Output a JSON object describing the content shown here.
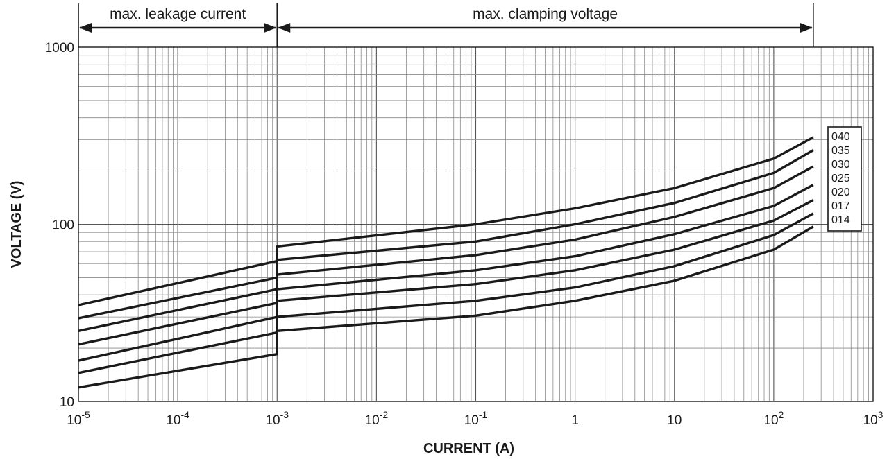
{
  "chart_data": {
    "type": "line",
    "xlabel": "CURRENT (A)",
    "ylabel": "VOLTAGE (V)",
    "x_scale": "log",
    "y_scale": "log",
    "xlim": [
      1e-05,
      1000
    ],
    "ylim": [
      10,
      1000
    ],
    "grid": true,
    "x_ticks": [
      {
        "value": 1e-05,
        "base": "10",
        "exp": "-5"
      },
      {
        "value": 0.0001,
        "base": "10",
        "exp": "-4"
      },
      {
        "value": 0.001,
        "base": "10",
        "exp": "-3"
      },
      {
        "value": 0.01,
        "base": "10",
        "exp": "-2"
      },
      {
        "value": 0.1,
        "base": "10",
        "exp": "-1"
      },
      {
        "value": 1,
        "base": "1",
        "exp": ""
      },
      {
        "value": 10,
        "base": "10",
        "exp": ""
      },
      {
        "value": 100,
        "base": "10",
        "exp": "2"
      },
      {
        "value": 1000,
        "base": "10",
        "exp": "3"
      }
    ],
    "y_ticks": [
      {
        "value": 10,
        "label": "10"
      },
      {
        "value": 100,
        "label": "100"
      },
      {
        "value": 1000,
        "label": "1000"
      }
    ],
    "regions": [
      {
        "label": "max. leakage current",
        "x_from": 1e-05,
        "x_to": 0.001
      },
      {
        "label": "max. clamping voltage",
        "x_from": 0.001,
        "x_to": 250
      }
    ],
    "legend_placement": "right",
    "series": [
      {
        "name": "040",
        "points": [
          [
            1e-05,
            35
          ],
          [
            0.001,
            62
          ],
          [
            0.001,
            75
          ],
          [
            0.1,
            100
          ],
          [
            1,
            123
          ],
          [
            10,
            160
          ],
          [
            100,
            235
          ],
          [
            250,
            310
          ]
        ]
      },
      {
        "name": "035",
        "points": [
          [
            1e-05,
            29.5
          ],
          [
            0.001,
            50
          ],
          [
            0.001,
            63
          ],
          [
            0.1,
            80
          ],
          [
            1,
            100
          ],
          [
            10,
            132
          ],
          [
            100,
            195
          ],
          [
            250,
            262
          ]
        ]
      },
      {
        "name": "030",
        "points": [
          [
            1e-05,
            25
          ],
          [
            0.001,
            43
          ],
          [
            0.001,
            52
          ],
          [
            0.1,
            67
          ],
          [
            1,
            82
          ],
          [
            10,
            110
          ],
          [
            100,
            160
          ],
          [
            250,
            212
          ]
        ]
      },
      {
        "name": "025",
        "points": [
          [
            1e-05,
            21
          ],
          [
            0.001,
            36
          ],
          [
            0.001,
            43
          ],
          [
            0.1,
            55
          ],
          [
            1,
            66
          ],
          [
            10,
            88
          ],
          [
            100,
            127
          ],
          [
            250,
            167
          ]
        ]
      },
      {
        "name": "020",
        "points": [
          [
            1e-05,
            17
          ],
          [
            0.001,
            30
          ],
          [
            0.001,
            37
          ],
          [
            0.1,
            46
          ],
          [
            1,
            55
          ],
          [
            10,
            72
          ],
          [
            100,
            105
          ],
          [
            250,
            137
          ]
        ]
      },
      {
        "name": "017",
        "points": [
          [
            1e-05,
            14.5
          ],
          [
            0.001,
            24.5
          ],
          [
            0.001,
            30
          ],
          [
            0.1,
            37
          ],
          [
            1,
            44
          ],
          [
            10,
            58
          ],
          [
            100,
            87
          ],
          [
            250,
            115
          ]
        ]
      },
      {
        "name": "014",
        "points": [
          [
            1e-05,
            12
          ],
          [
            0.001,
            18.5
          ],
          [
            0.001,
            25
          ],
          [
            0.1,
            30.5
          ],
          [
            1,
            37
          ],
          [
            10,
            48
          ],
          [
            100,
            72
          ],
          [
            250,
            97
          ]
        ]
      }
    ]
  }
}
